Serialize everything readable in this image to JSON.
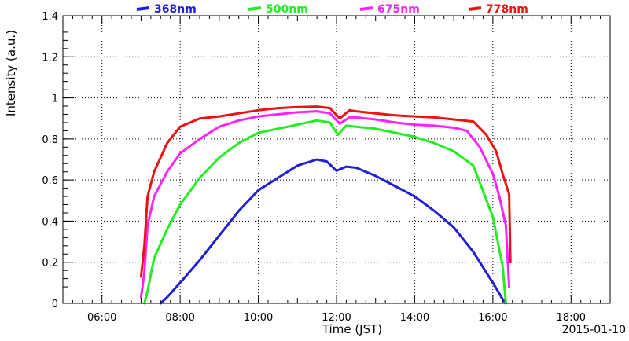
{
  "chart_data": {
    "type": "line",
    "xlabel": "Time (JST)",
    "ylabel": "Intensity (a.u.)",
    "date_label": "2015-01-10",
    "xlim": [
      "05:00",
      "19:00"
    ],
    "ylim": [
      0,
      1.4
    ],
    "x_ticks": [
      "06:00",
      "08:00",
      "10:00",
      "12:00",
      "14:00",
      "16:00",
      "18:00"
    ],
    "y_ticks": [
      "0",
      "0.2",
      "0.4",
      "0.6",
      "0.8",
      "1",
      "1.2",
      "1.4"
    ],
    "grid": true,
    "grid_style": "dotted",
    "legend_position": "top",
    "series": [
      {
        "name": "368nm",
        "color": "#1f1fd6",
        "points": [
          [
            "07:30",
            0.0
          ],
          [
            "07:40",
            0.03
          ],
          [
            "08:00",
            0.1
          ],
          [
            "08:30",
            0.21
          ],
          [
            "09:00",
            0.33
          ],
          [
            "09:30",
            0.45
          ],
          [
            "10:00",
            0.55
          ],
          [
            "10:30",
            0.61
          ],
          [
            "11:00",
            0.67
          ],
          [
            "11:30",
            0.7
          ],
          [
            "11:45",
            0.69
          ],
          [
            "12:00",
            0.645
          ],
          [
            "12:15",
            0.665
          ],
          [
            "12:30",
            0.66
          ],
          [
            "13:00",
            0.62
          ],
          [
            "13:30",
            0.57
          ],
          [
            "14:00",
            0.52
          ],
          [
            "14:30",
            0.45
          ],
          [
            "15:00",
            0.37
          ],
          [
            "15:30",
            0.25
          ],
          [
            "16:00",
            0.1
          ],
          [
            "16:15",
            0.02
          ],
          [
            "16:20",
            0.0
          ]
        ]
      },
      {
        "name": "500nm",
        "color": "#22ee22",
        "points": [
          [
            "07:05",
            0.0
          ],
          [
            "07:10",
            0.06
          ],
          [
            "07:20",
            0.22
          ],
          [
            "07:40",
            0.36
          ],
          [
            "08:00",
            0.48
          ],
          [
            "08:30",
            0.61
          ],
          [
            "09:00",
            0.71
          ],
          [
            "09:30",
            0.78
          ],
          [
            "10:00",
            0.83
          ],
          [
            "10:30",
            0.85
          ],
          [
            "11:00",
            0.87
          ],
          [
            "11:30",
            0.89
          ],
          [
            "11:50",
            0.88
          ],
          [
            "12:02",
            0.82
          ],
          [
            "12:15",
            0.865
          ],
          [
            "12:30",
            0.86
          ],
          [
            "13:00",
            0.85
          ],
          [
            "13:30",
            0.83
          ],
          [
            "14:00",
            0.81
          ],
          [
            "14:30",
            0.78
          ],
          [
            "15:00",
            0.74
          ],
          [
            "15:30",
            0.67
          ],
          [
            "16:00",
            0.42
          ],
          [
            "16:15",
            0.18
          ],
          [
            "16:20",
            0.0
          ]
        ]
      },
      {
        "name": "675nm",
        "color": "#ff22ff",
        "points": [
          [
            "07:00",
            0.03
          ],
          [
            "07:05",
            0.15
          ],
          [
            "07:10",
            0.38
          ],
          [
            "07:20",
            0.52
          ],
          [
            "07:40",
            0.64
          ],
          [
            "08:00",
            0.73
          ],
          [
            "08:30",
            0.8
          ],
          [
            "09:00",
            0.86
          ],
          [
            "09:30",
            0.89
          ],
          [
            "10:00",
            0.91
          ],
          [
            "10:30",
            0.92
          ],
          [
            "11:00",
            0.93
          ],
          [
            "11:30",
            0.935
          ],
          [
            "11:50",
            0.925
          ],
          [
            "12:05",
            0.875
          ],
          [
            "12:20",
            0.905
          ],
          [
            "12:30",
            0.905
          ],
          [
            "13:00",
            0.895
          ],
          [
            "13:30",
            0.88
          ],
          [
            "14:00",
            0.87
          ],
          [
            "14:30",
            0.865
          ],
          [
            "15:00",
            0.855
          ],
          [
            "15:20",
            0.84
          ],
          [
            "15:40",
            0.76
          ],
          [
            "16:00",
            0.63
          ],
          [
            "16:10",
            0.52
          ],
          [
            "16:20",
            0.38
          ],
          [
            "16:25",
            0.08
          ]
        ]
      },
      {
        "name": "778nm",
        "color": "#ee1111",
        "points": [
          [
            "07:00",
            0.13
          ],
          [
            "07:05",
            0.28
          ],
          [
            "07:10",
            0.52
          ],
          [
            "07:20",
            0.64
          ],
          [
            "07:40",
            0.78
          ],
          [
            "08:00",
            0.86
          ],
          [
            "08:30",
            0.9
          ],
          [
            "09:00",
            0.91
          ],
          [
            "09:30",
            0.925
          ],
          [
            "10:00",
            0.94
          ],
          [
            "10:30",
            0.95
          ],
          [
            "11:00",
            0.955
          ],
          [
            "11:30",
            0.958
          ],
          [
            "11:50",
            0.95
          ],
          [
            "12:05",
            0.9
          ],
          [
            "12:20",
            0.94
          ],
          [
            "12:30",
            0.935
          ],
          [
            "13:00",
            0.925
          ],
          [
            "13:30",
            0.915
          ],
          [
            "14:00",
            0.91
          ],
          [
            "14:30",
            0.905
          ],
          [
            "15:00",
            0.895
          ],
          [
            "15:30",
            0.885
          ],
          [
            "15:50",
            0.82
          ],
          [
            "16:05",
            0.74
          ],
          [
            "16:15",
            0.63
          ],
          [
            "16:25",
            0.53
          ],
          [
            "16:27",
            0.2
          ]
        ]
      }
    ]
  }
}
